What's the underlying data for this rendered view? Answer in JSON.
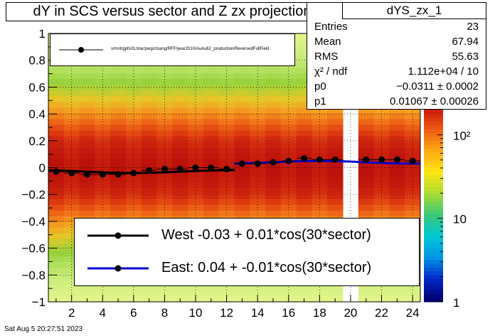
{
  "chart_data": {
    "type": "scatter",
    "title": "dY in SCS versus sector and Z zx projection",
    "xlim": [
      0.5,
      24.5
    ],
    "ylim": [
      -1,
      1
    ],
    "x_ticks": [
      2,
      4,
      6,
      8,
      10,
      12,
      14,
      16,
      18,
      20,
      22,
      24
    ],
    "y_ticks": [
      -1,
      -0.8,
      -0.6,
      -0.4,
      -0.2,
      0,
      0.2,
      0.4,
      0.6,
      0.8,
      1
    ],
    "grid": true,
    "colorbar": {
      "scale": "log",
      "min": 1,
      "max": 200,
      "ticks": [
        1,
        10,
        100
      ],
      "tick_labels": [
        "1",
        "10",
        "10²"
      ]
    },
    "series": [
      {
        "name": "/star/pwg/ctsang/RFF/year2010/AuAu62_production/ReversedFullField",
        "x": [
          1,
          2,
          3,
          4,
          5,
          6,
          7,
          8,
          9,
          10,
          11,
          12,
          13,
          14,
          15,
          16,
          17,
          18,
          19,
          20,
          21,
          22,
          23,
          24
        ],
        "y": [
          -0.03,
          -0.04,
          -0.05,
          -0.05,
          -0.05,
          -0.04,
          -0.02,
          -0.01,
          -0.01,
          0.0,
          0.0,
          -0.01,
          0.03,
          0.03,
          0.04,
          0.05,
          0.07,
          0.06,
          0.06,
          null,
          0.06,
          0.06,
          0.06,
          0.05
        ]
      }
    ],
    "fits": [
      {
        "label": "West -0.03 +  0.01*cos(30*sector)",
        "x_range": [
          0.5,
          12.5
        ],
        "p0": -0.03,
        "p1": 0.01,
        "color": "#000000"
      },
      {
        "label": "East:  0.04 + -0.01*cos(30*sector)",
        "x_range": [
          12.5,
          24.5
        ],
        "p0": 0.04,
        "p1": -0.01,
        "color": "#0000cc"
      }
    ],
    "stats": {
      "name": "dYS_zx_1",
      "rows": [
        {
          "label": "Entries",
          "value": "23"
        },
        {
          "label": "Mean",
          "value": "67.94"
        },
        {
          "label": "RMS",
          "value": "55.63"
        },
        {
          "label": "χ² / ndf",
          "value": "1.112e+04 / 10"
        },
        {
          "label": "p0",
          "value": "−0.0311 ± 0.0002"
        },
        {
          "label": "p1",
          "value": "0.01067 ± 0.00026"
        }
      ]
    }
  },
  "legend_top_text": "s/mnt/gpfs01/star/pwg/ctsang/RFF/year2010/AuAu62_production/ReversedFullField",
  "timestamp": "Sat Aug  5 20:27:51 2023"
}
